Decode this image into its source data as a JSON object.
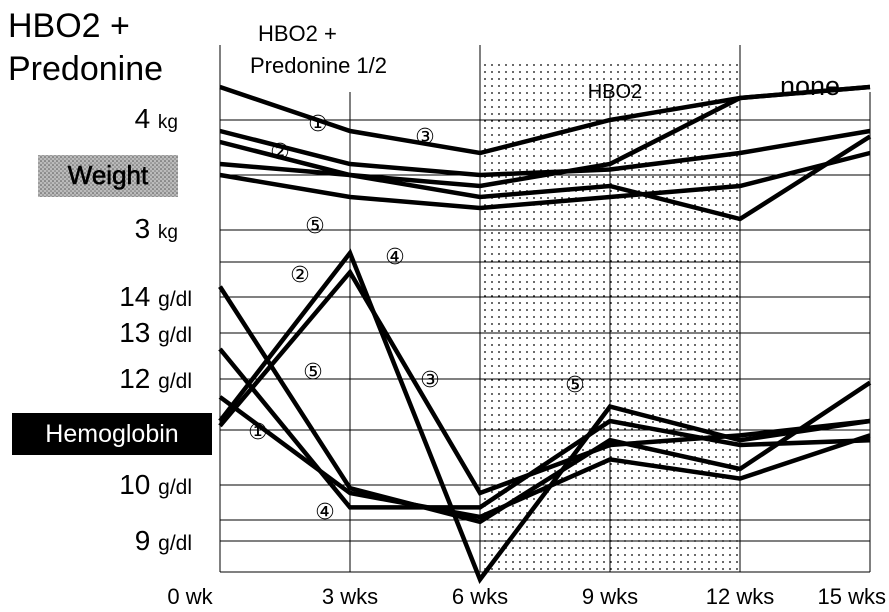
{
  "chart_data": {
    "type": "line",
    "x_ticks": [
      "0 wk",
      "3 wks",
      "6 wks",
      "9 wks",
      "12 wks",
      "15 wks"
    ],
    "x": [
      0,
      3,
      6,
      9,
      12,
      15
    ],
    "phases": [
      {
        "label": "HBO2 +\nPredonine",
        "from": -3,
        "to": 0,
        "shaded": false
      },
      {
        "label": "HBO2 +\nPredonine 1/2",
        "from": 0,
        "to": 6,
        "shaded": false
      },
      {
        "label": "HBO2",
        "from": 6,
        "to": 12,
        "shaded": true
      },
      {
        "label": "none",
        "from": 12,
        "to": 15,
        "shaded": false
      }
    ],
    "panels": [
      {
        "name": "Weight",
        "unit": "kg",
        "ticks": [
          {
            "value": 4,
            "label": "4 kg"
          },
          {
            "value": 3,
            "label": "3 kg"
          }
        ],
        "series": [
          {
            "name": "1",
            "values": [
              4.3,
              3.9,
              3.7,
              4.0,
              4.2,
              4.3
            ]
          },
          {
            "name": "2",
            "values": [
              3.9,
              3.6,
              3.5,
              3.55,
              3.7,
              3.9
            ]
          },
          {
            "name": "3",
            "values": [
              3.6,
              3.5,
              3.4,
              3.6,
              4.2,
              4.3
            ]
          },
          {
            "name": "4",
            "values": [
              3.8,
              3.5,
              3.3,
              3.4,
              3.1,
              3.85
            ]
          },
          {
            "name": "5",
            "values": [
              3.5,
              3.3,
              3.2,
              3.3,
              3.4,
              3.7
            ]
          }
        ]
      },
      {
        "name": "Hemoglobin",
        "unit": "g/dl",
        "ticks": [
          {
            "value": 14,
            "label": "14 g/dl"
          },
          {
            "value": 13,
            "label": "13 g/dl"
          },
          {
            "value": 12,
            "label": "12 g/dl"
          },
          {
            "value": 10,
            "label": "10 g/dl"
          },
          {
            "value": 9,
            "label": "9 g/dl"
          }
        ],
        "series": [
          {
            "name": "1",
            "values": [
              12.0,
              10.0,
              9.5,
              10.7,
              10.3,
              11.2
            ]
          },
          {
            "name": "2",
            "values": [
              11.5,
              15.0,
              8.2,
              11.8,
              11.1,
              11.5
            ]
          },
          {
            "name": "3",
            "values": [
              11.4,
              14.6,
              10.0,
              11.0,
              11.2,
              11.5
            ]
          },
          {
            "name": "4",
            "values": [
              13.0,
              9.7,
              9.7,
              11.5,
              11.0,
              11.1
            ]
          },
          {
            "name": "5",
            "values": [
              14.3,
              10.1,
              9.4,
              11.1,
              10.5,
              12.3
            ]
          }
        ]
      }
    ]
  },
  "series_markers": [
    "①",
    "②",
    "③",
    "④",
    "⑤"
  ]
}
